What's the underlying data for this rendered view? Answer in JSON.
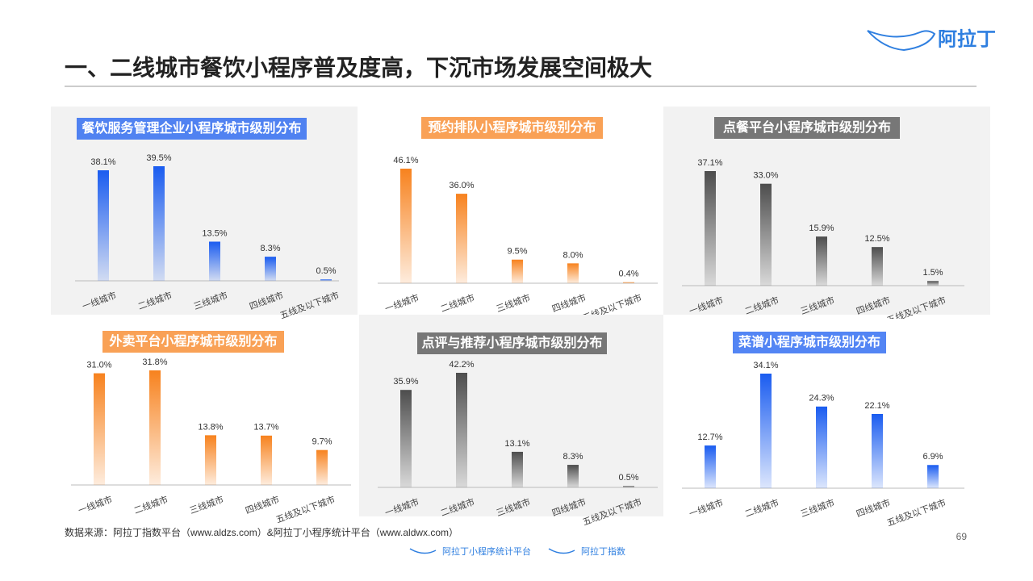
{
  "header": {
    "title": "一、二线城市餐饮小程序普及度高，下沉市场发展空间极大",
    "logo": "阿拉丁"
  },
  "chart_data": [
    {
      "type": "bar",
      "title": "餐饮服务管理企业小程序城市级别分布",
      "categories": [
        "一线城市",
        "二线城市",
        "三线城市",
        "四线城市",
        "五线及以下城市"
      ],
      "values": [
        38.1,
        39.5,
        13.5,
        8.3,
        0.5
      ],
      "value_labels": [
        "38.1%",
        "39.5%",
        "13.5%",
        "8.3%",
        "0.5%"
      ],
      "color": "#1a5cf0"
    },
    {
      "type": "bar",
      "title": "预约排队小程序城市级别分布",
      "categories": [
        "一线城市",
        "二线城市",
        "三线城市",
        "四线城市",
        "五线及以下城市"
      ],
      "values": [
        46.1,
        36.0,
        9.5,
        8.0,
        0.4
      ],
      "value_labels": [
        "46.1%",
        "36.0%",
        "9.5%",
        "8.0%",
        "0.4%"
      ],
      "color": "#f7821e"
    },
    {
      "type": "bar",
      "title": "点餐平台小程序城市级别分布",
      "categories": [
        "一线城市",
        "二线城市",
        "三线城市",
        "四线城市",
        "五线及以下城市"
      ],
      "values": [
        37.1,
        33.0,
        15.9,
        12.5,
        1.5
      ],
      "value_labels": [
        "37.1%",
        "33.0%",
        "15.9%",
        "12.5%",
        "1.5%"
      ],
      "color": "#4d4d4d"
    },
    {
      "type": "bar",
      "title": "外卖平台小程序城市级别分布",
      "categories": [
        "一线城市",
        "二线城市",
        "三线城市",
        "四线城市",
        "五线及以下城市"
      ],
      "values": [
        31.0,
        31.8,
        13.8,
        13.7,
        9.7
      ],
      "value_labels": [
        "31.0%",
        "31.8%",
        "13.8%",
        "13.7%",
        "9.7%"
      ],
      "color": "#f7821e"
    },
    {
      "type": "bar",
      "title": "点评与推荐小程序城市级别分布",
      "categories": [
        "一线城市",
        "二线城市",
        "三线城市",
        "四线城市",
        "五线及以下城市"
      ],
      "values": [
        35.9,
        42.2,
        13.1,
        8.3,
        0.5
      ],
      "value_labels": [
        "35.9%",
        "42.2%",
        "13.1%",
        "8.3%",
        "0.5%"
      ],
      "color": "#4d4d4d"
    },
    {
      "type": "bar",
      "title": "菜谱小程序城市级别分布",
      "categories": [
        "一线城市",
        "二线城市",
        "三线城市",
        "四线城市",
        "五线及以下城市"
      ],
      "values": [
        12.7,
        34.1,
        24.3,
        22.1,
        6.9
      ],
      "value_labels": [
        "12.7%",
        "34.1%",
        "24.3%",
        "22.1%",
        "6.9%"
      ],
      "color": "#1a5cf0"
    }
  ],
  "footer": {
    "source": "数据来源：阿拉丁指数平台（www.aldzs.com）&阿拉丁小程序统计平台（www.aldwx.com）",
    "page": "69",
    "logos": [
      "阿拉丁小程序统计平台",
      "阿拉丁指数"
    ]
  }
}
